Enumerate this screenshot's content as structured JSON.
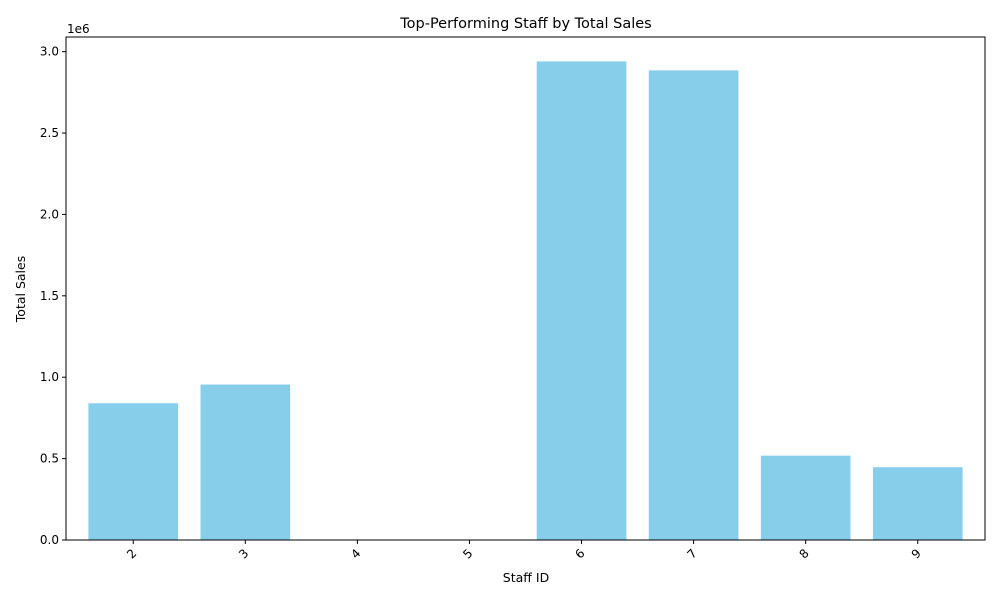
{
  "chart_data": {
    "type": "bar",
    "title": "Top-Performing Staff by Total Sales",
    "xlabel": "Staff ID",
    "ylabel": "Total Sales",
    "y_offset_label": "1e6",
    "categories": [
      "2",
      "3",
      "4",
      "5",
      "6",
      "7",
      "8",
      "9"
    ],
    "values": [
      840000,
      955000,
      0,
      0,
      2940000,
      2885000,
      518000,
      447000
    ],
    "ylim": [
      0,
      3090000
    ],
    "y_ticks": [
      0,
      0.5,
      1.0,
      1.5,
      2.0,
      2.5,
      3.0
    ],
    "y_tick_labels": [
      "0.0",
      "0.5",
      "1.0",
      "1.5",
      "2.0",
      "2.5",
      "3.0"
    ],
    "y_tick_scale": 1000000,
    "x_tick_rotation": 45,
    "grid": false,
    "legend": "none",
    "bar_color": "#87CEEB"
  }
}
